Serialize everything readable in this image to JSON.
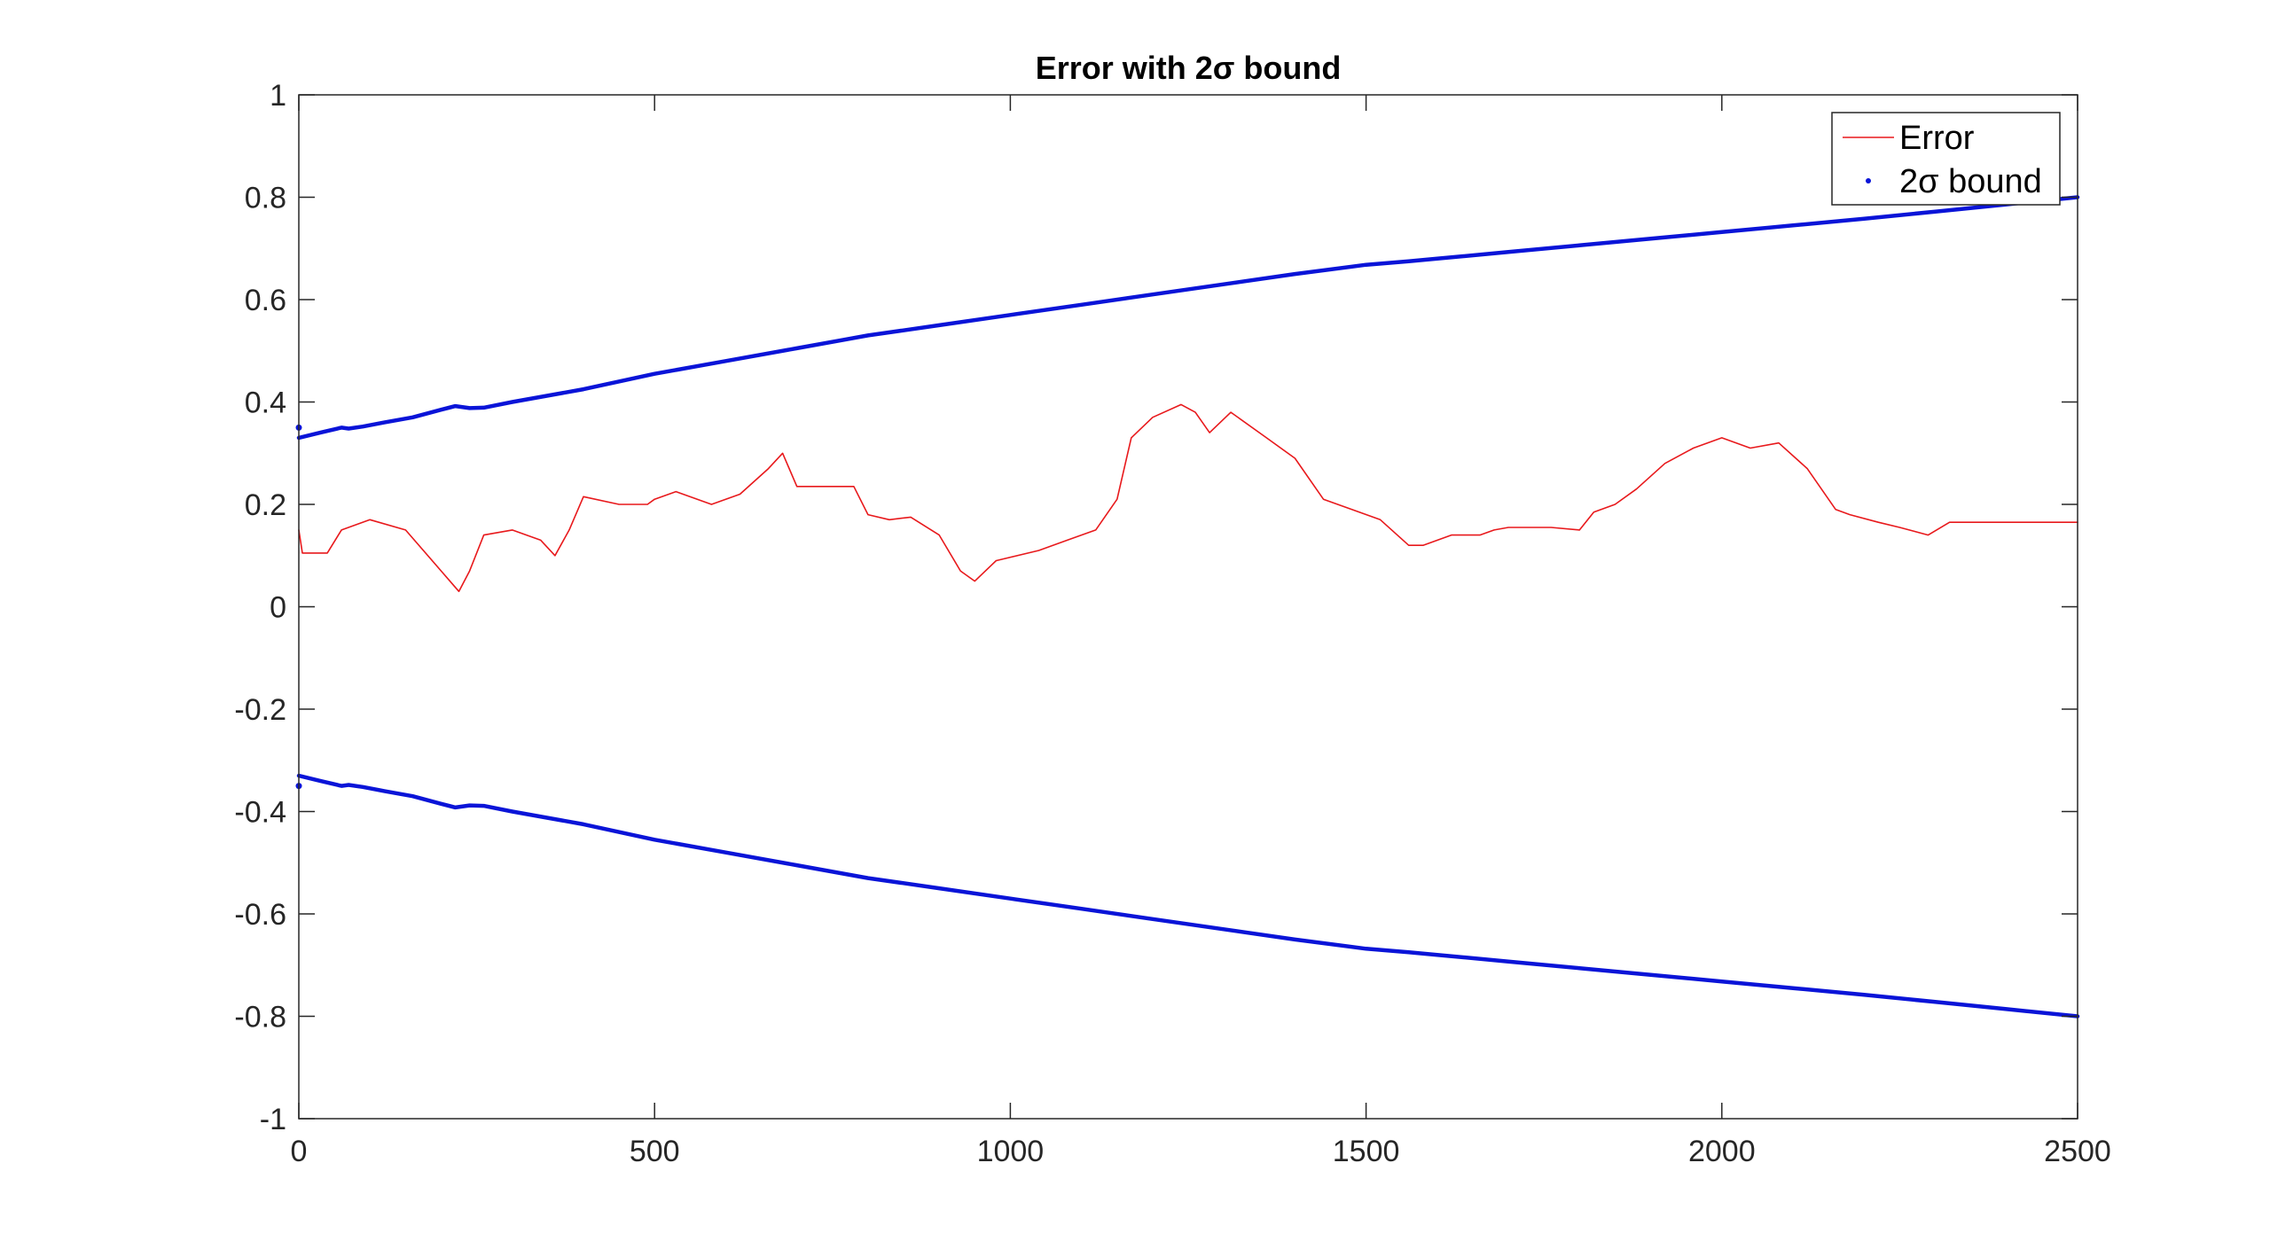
{
  "chart_data": {
    "type": "line",
    "title": "Error with 2σ bound",
    "xlabel": "",
    "ylabel": "",
    "xlim": [
      0,
      2500
    ],
    "ylim": [
      -1,
      1
    ],
    "xticks": [
      0,
      500,
      1000,
      1500,
      2000,
      2500
    ],
    "xtick_labels": [
      "0",
      "500",
      "1000",
      "1500",
      "2000",
      "2500"
    ],
    "yticks": [
      -1,
      -0.8,
      -0.6,
      -0.4,
      -0.2,
      0,
      0.2,
      0.4,
      0.6,
      0.8,
      1
    ],
    "ytick_labels": [
      "-1",
      "-0.8",
      "-0.6",
      "-0.4",
      "-0.2",
      "0",
      "0.2",
      "0.4",
      "0.6",
      "0.8",
      "1"
    ],
    "grid": false,
    "legend_position": "top-right",
    "legend": [
      {
        "label": "Error",
        "marker": "line",
        "color": "#e8191c"
      },
      {
        "label": "2σ bound",
        "marker": "dot",
        "color": "#0a14d8"
      }
    ],
    "series": [
      {
        "name": "Error",
        "color": "#e8191c",
        "x": [
          0,
          5,
          40,
          60,
          100,
          150,
          200,
          225,
          240,
          260,
          300,
          340,
          360,
          380,
          400,
          450,
          490,
          500,
          530,
          580,
          620,
          660,
          680,
          700,
          740,
          780,
          800,
          830,
          860,
          900,
          930,
          950,
          980,
          1040,
          1080,
          1120,
          1150,
          1170,
          1200,
          1240,
          1260,
          1280,
          1310,
          1360,
          1400,
          1440,
          1480,
          1520,
          1560,
          1580,
          1620,
          1660,
          1680,
          1700,
          1760,
          1800,
          1820,
          1850,
          1880,
          1920,
          1960,
          2000,
          2040,
          2080,
          2120,
          2160,
          2180,
          2220,
          2250,
          2290,
          2320,
          2500
        ],
        "y": [
          0.15,
          0.105,
          0.105,
          0.15,
          0.17,
          0.15,
          0.07,
          0.03,
          0.07,
          0.14,
          0.15,
          0.13,
          0.1,
          0.15,
          0.215,
          0.2,
          0.2,
          0.21,
          0.225,
          0.2,
          0.22,
          0.27,
          0.3,
          0.235,
          0.235,
          0.235,
          0.18,
          0.17,
          0.175,
          0.14,
          0.07,
          0.05,
          0.09,
          0.11,
          0.13,
          0.15,
          0.21,
          0.33,
          0.37,
          0.395,
          0.38,
          0.34,
          0.38,
          0.33,
          0.29,
          0.21,
          0.19,
          0.17,
          0.12,
          0.12,
          0.14,
          0.14,
          0.15,
          0.155,
          0.155,
          0.15,
          0.185,
          0.2,
          0.23,
          0.28,
          0.31,
          0.33,
          0.31,
          0.32,
          0.27,
          0.19,
          0.18,
          0.165,
          0.155,
          0.14,
          0.165,
          0.165
        ]
      },
      {
        "name": "2σ bound",
        "color": "#0a14d8",
        "x": [
          0,
          30,
          60,
          70,
          90,
          120,
          160,
          200,
          220,
          240,
          260,
          300,
          400,
          500,
          600,
          700,
          800,
          900,
          1000,
          1100,
          1200,
          1300,
          1400,
          1500,
          1560,
          1600,
          1700,
          1800,
          1900,
          2000,
          2100,
          2200,
          2300,
          2400,
          2500
        ],
        "y": [
          0.33,
          0.34,
          0.35,
          0.348,
          0.352,
          0.36,
          0.37,
          0.385,
          0.392,
          0.388,
          0.389,
          0.4,
          0.425,
          0.455,
          0.48,
          0.505,
          0.53,
          0.55,
          0.57,
          0.59,
          0.61,
          0.63,
          0.65,
          0.668,
          0.675,
          0.68,
          0.693,
          0.706,
          0.719,
          0.732,
          0.745,
          0.758,
          0.772,
          0.786,
          0.8
        ]
      },
      {
        "name": "2σ bound",
        "color": "#0a14d8",
        "x": [
          0,
          30,
          60,
          70,
          90,
          120,
          160,
          200,
          220,
          240,
          260,
          300,
          400,
          500,
          600,
          700,
          800,
          900,
          1000,
          1100,
          1200,
          1300,
          1400,
          1500,
          1560,
          1600,
          1700,
          1800,
          1900,
          2000,
          2100,
          2200,
          2300,
          2400,
          2500
        ],
        "y": [
          -0.33,
          -0.34,
          -0.35,
          -0.348,
          -0.352,
          -0.36,
          -0.37,
          -0.385,
          -0.392,
          -0.388,
          -0.389,
          -0.4,
          -0.425,
          -0.455,
          -0.48,
          -0.505,
          -0.53,
          -0.55,
          -0.57,
          -0.59,
          -0.61,
          -0.63,
          -0.65,
          -0.668,
          -0.675,
          -0.68,
          -0.693,
          -0.706,
          -0.719,
          -0.732,
          -0.745,
          -0.758,
          -0.772,
          -0.786,
          -0.8
        ]
      }
    ],
    "start_points": [
      {
        "x": 0,
        "y": 0.35,
        "color": "#0a14d8"
      },
      {
        "x": 0,
        "y": -0.35,
        "color": "#0a14d8"
      }
    ]
  }
}
